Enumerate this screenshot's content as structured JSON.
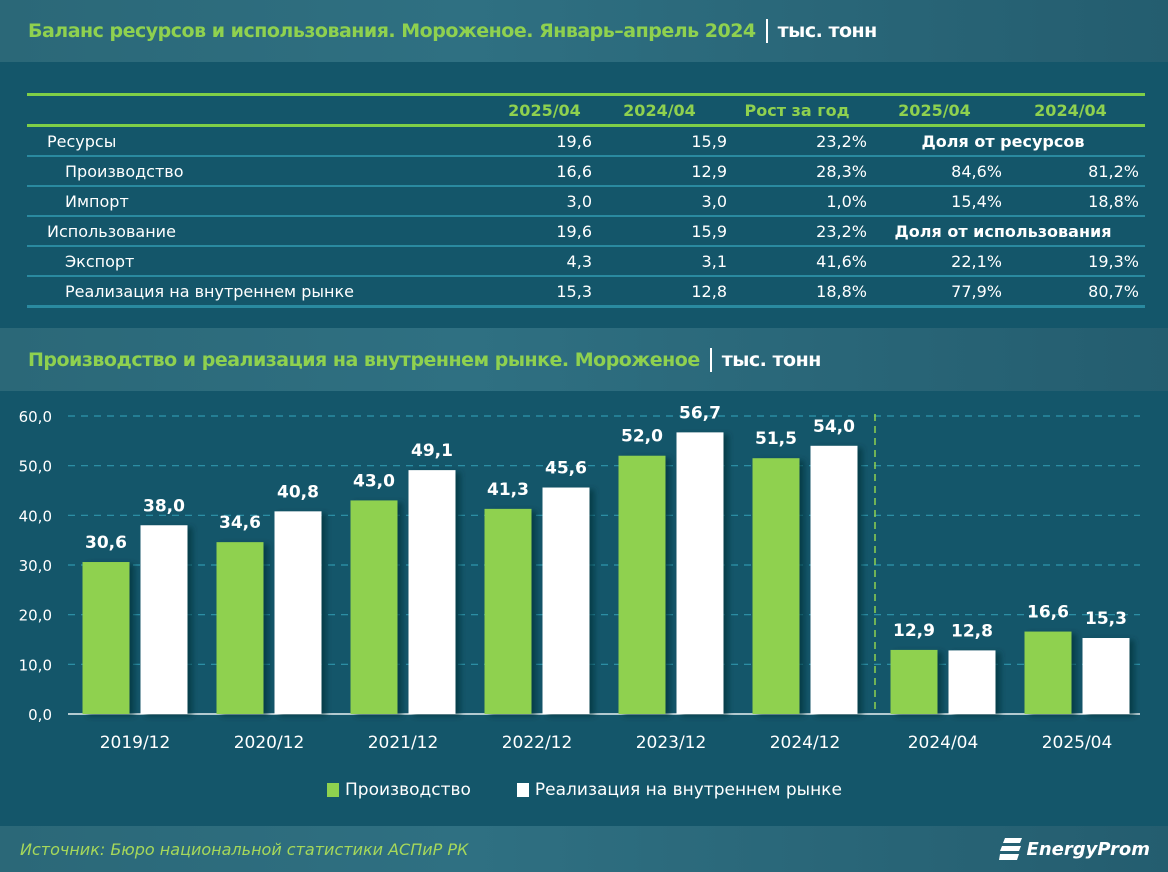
{
  "header": {
    "title": "Баланс ресурсов и использования. Мороженое. Январь–апрель 2024",
    "unit": "тыс. тонн"
  },
  "table": {
    "columns": [
      "2025/04",
      "2024/04",
      "Рост за год",
      "2025/04",
      "2024/04"
    ],
    "rows": [
      {
        "label": "Ресурсы",
        "v2025": "19,6",
        "v2024": "15,9",
        "growth": "23,2%",
        "share_label": "Доля от ресурсов"
      },
      {
        "label": "Производство",
        "v2025": "16,6",
        "v2024": "12,9",
        "growth": "28,3%",
        "s2025": "84,6%",
        "s2024": "81,2%"
      },
      {
        "label": "Импорт",
        "v2025": "3,0",
        "v2024": "3,0",
        "growth": "1,0%",
        "s2025": "15,4%",
        "s2024": "18,8%"
      },
      {
        "label": "Использование",
        "v2025": "19,6",
        "v2024": "15,9",
        "growth": "23,2%",
        "share_label": "Доля от использования"
      },
      {
        "label": "Экспорт",
        "v2025": "4,3",
        "v2024": "3,1",
        "growth": "41,6%",
        "s2025": "22,1%",
        "s2024": "19,3%"
      },
      {
        "label": "Реализация на внутреннем рынке",
        "v2025": "15,3",
        "v2024": "12,8",
        "growth": "18,8%",
        "s2025": "77,9%",
        "s2024": "80,7%"
      }
    ]
  },
  "chart_header": {
    "title": "Производство и реализация на внутреннем рынке. Мороженое",
    "unit": "тыс. тонн"
  },
  "chart_data": {
    "type": "bar",
    "title": "Производство и реализация на внутреннем рынке. Мороженое",
    "xlabel": "",
    "ylabel": "тыс. тонн",
    "categories": [
      "2019/12",
      "2020/12",
      "2021/12",
      "2022/12",
      "2023/12",
      "2024/12",
      "2024/04",
      "2025/04"
    ],
    "series": [
      {
        "name": "Производство",
        "color": "#8fd14f",
        "values": [
          30.6,
          34.6,
          43.0,
          41.3,
          52.0,
          51.5,
          12.9,
          16.6
        ],
        "labels": [
          "30,6",
          "34,6",
          "43,0",
          "41,3",
          "52,0",
          "51,5",
          "12,9",
          "16,6"
        ]
      },
      {
        "name": "Реализация на внутреннем рынке",
        "color": "#ffffff",
        "values": [
          38.0,
          40.8,
          49.1,
          45.6,
          56.7,
          54.0,
          12.8,
          15.3
        ],
        "labels": [
          "38,0",
          "40,8",
          "49,1",
          "45,6",
          "56,7",
          "54,0",
          "12,8",
          "15,3"
        ]
      }
    ],
    "ylim": [
      0,
      60
    ],
    "yticks": [
      "0,0",
      "10,0",
      "20,0",
      "30,0",
      "40,0",
      "50,0",
      "60,0"
    ],
    "grid": true,
    "legend": "bottom"
  },
  "footer": {
    "source": "Источник: Бюро национальной статистики АСПиР РК",
    "logo": "EnergyProm"
  }
}
